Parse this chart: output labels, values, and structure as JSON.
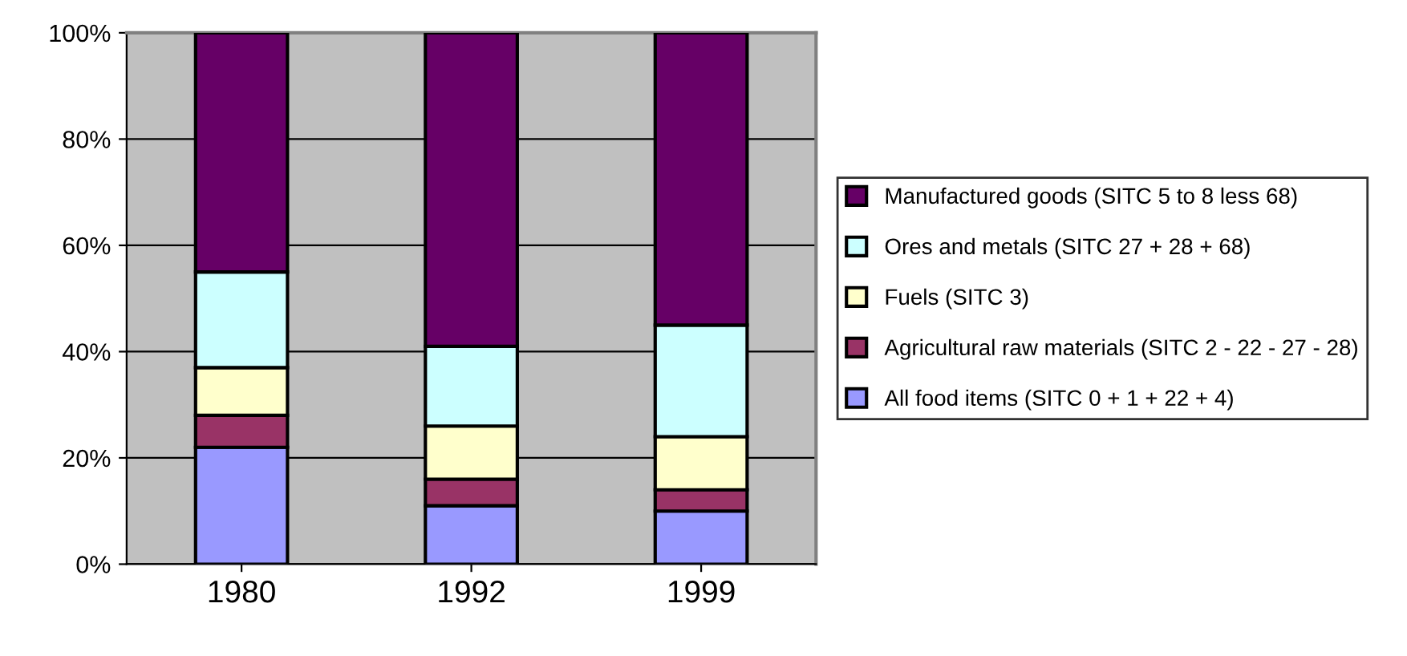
{
  "chart_data": {
    "type": "bar",
    "stacked": true,
    "categories": [
      "1980",
      "1992",
      "1999"
    ],
    "series": [
      {
        "name": "All food items (SITC 0 + 1 + 22 + 4)",
        "color": "#9999ff",
        "values": [
          22,
          11,
          10
        ]
      },
      {
        "name": "Agricultural raw materials (SITC 2 - 22 - 27 - 28)",
        "color": "#993366",
        "values": [
          6,
          5,
          4
        ]
      },
      {
        "name": "Fuels (SITC 3)",
        "color": "#ffffcc",
        "values": [
          9,
          10,
          10
        ]
      },
      {
        "name": "Ores and metals (SITC 27 + 28 + 68)",
        "color": "#ccffff",
        "values": [
          18,
          15,
          21
        ]
      },
      {
        "name": "Manufactured goods (SITC 5 to 8 less 68)",
        "color": "#660066",
        "values": [
          45,
          59,
          55
        ]
      }
    ],
    "ylim": [
      0,
      100
    ],
    "yticks": [
      {
        "value": 0,
        "label": "0%"
      },
      {
        "value": 20,
        "label": "20%"
      },
      {
        "value": 40,
        "label": "40%"
      },
      {
        "value": 60,
        "label": "60%"
      },
      {
        "value": 80,
        "label": "80%"
      },
      {
        "value": 100,
        "label": "100%"
      }
    ],
    "grid": "y",
    "legend": "right"
  }
}
